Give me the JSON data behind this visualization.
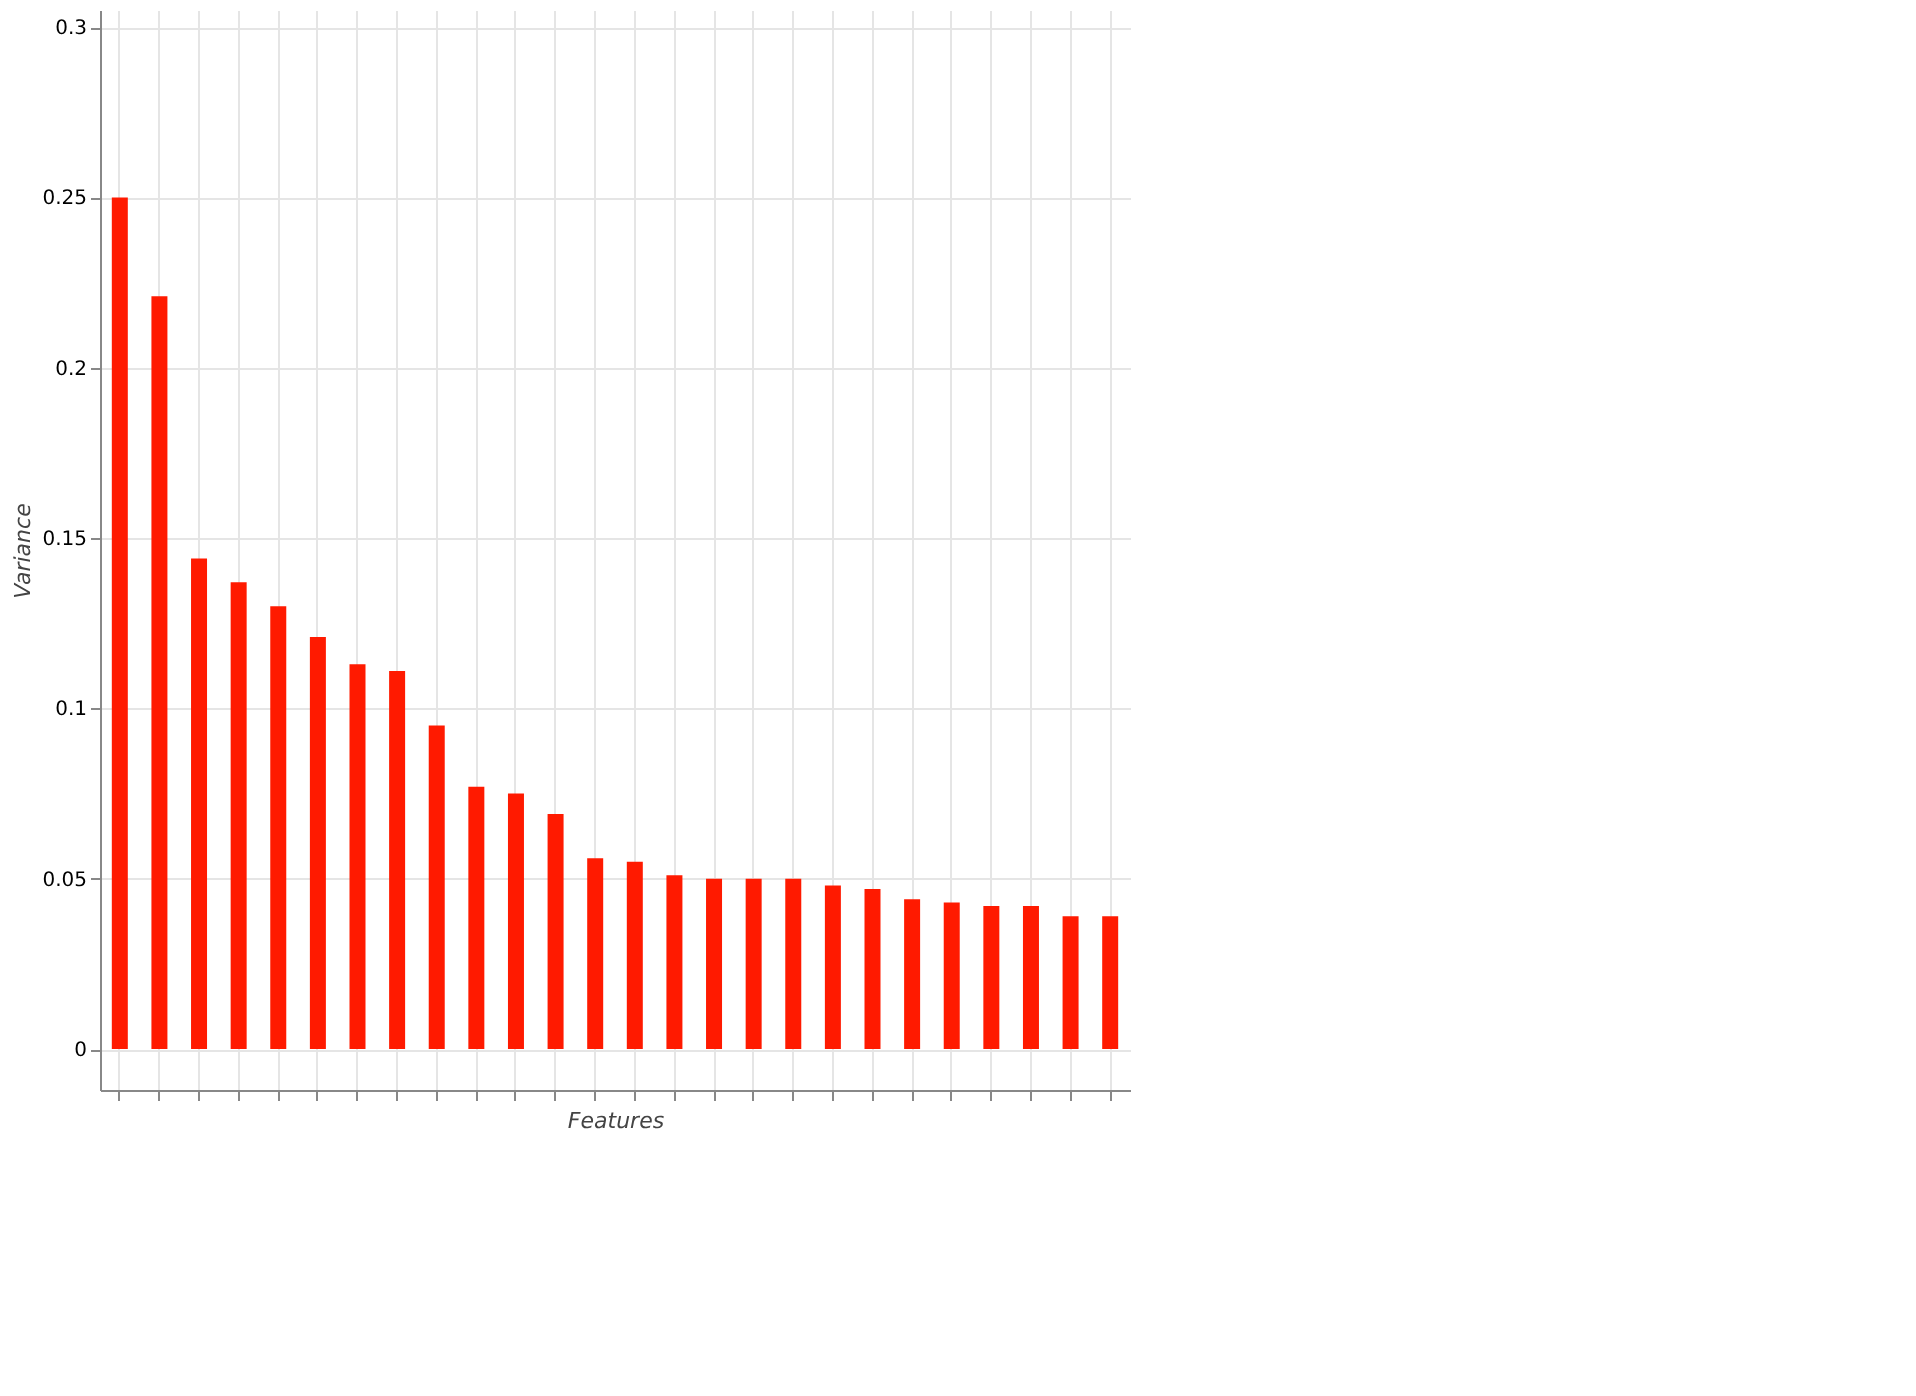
{
  "chart_data": {
    "type": "bar",
    "xlabel": "Features",
    "ylabel": "Variance",
    "categories": [
      null,
      null,
      null,
      null,
      null,
      null,
      null,
      null,
      null,
      null,
      null,
      null,
      null,
      null,
      null,
      null,
      null,
      null,
      null,
      null,
      null,
      null,
      null,
      null,
      null,
      null
    ],
    "values": [
      0.25,
      0.221,
      0.144,
      0.137,
      0.13,
      0.121,
      0.113,
      0.111,
      0.095,
      0.077,
      0.075,
      0.069,
      0.056,
      0.055,
      0.051,
      0.05,
      0.05,
      0.05,
      0.048,
      0.047,
      0.044,
      0.043,
      0.042,
      0.042,
      0.039,
      0.039
    ],
    "color": "#ff1a00",
    "ylim": [
      -0.012,
      0.305
    ],
    "yticks": [
      0,
      0.05,
      0.1,
      0.15,
      0.2,
      0.25,
      0.3
    ],
    "grid": true,
    "tick_labels": "y"
  }
}
